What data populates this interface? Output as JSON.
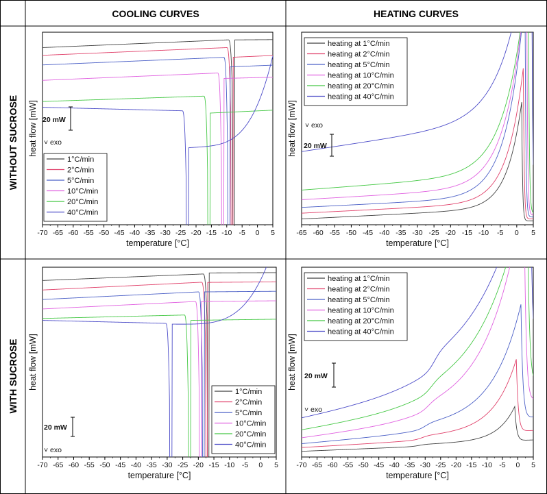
{
  "headers": {
    "col_left": "COOLING CURVES",
    "col_right": "HEATING CURVES",
    "row_top": "WITHOUT SUCROSE",
    "row_bottom": "WITH SUCROSE"
  },
  "colors": {
    "1": "#404040",
    "2": "#e0406a",
    "5": "#4a5fc6",
    "10": "#e060e0",
    "20": "#44c844",
    "40": "#4b4bc8"
  },
  "chart_data": [
    {
      "id": "cool_nosuc",
      "type": "line",
      "title": "Cooling curves without sucrose",
      "xlabel": "temperature [°C]",
      "ylabel": "heat flow [mW]",
      "xlim": [
        -70,
        5
      ],
      "xticks": [
        -70,
        -65,
        -60,
        -55,
        -50,
        -45,
        -40,
        -35,
        -30,
        -25,
        -20,
        -15,
        -10,
        -5,
        0,
        5
      ],
      "annotations": {
        "scale": "20 mW",
        "exo": "˅ exo"
      },
      "legend": {
        "position": "bottom-left",
        "entries": [
          "1°C/min",
          "2°C/min",
          "5°C/min",
          "10°C/min",
          "20°C/min",
          "40°C/min"
        ]
      },
      "series": [
        {
          "name": "1°C/min",
          "key": "1",
          "start": 92,
          "end": 97,
          "Tc": -8.0,
          "after": 96,
          "dip": 60,
          "width": 0.6
        },
        {
          "name": "2°C/min",
          "key": "2",
          "start": 88,
          "end": 93,
          "Tc": -8.5,
          "after": 87,
          "dip": 40,
          "width": 0.6
        },
        {
          "name": "5°C/min",
          "key": "5",
          "start": 83,
          "end": 88,
          "Tc": -9.5,
          "after": 82,
          "dip": 10,
          "width": 0.6
        },
        {
          "name": "10°C/min",
          "key": "10",
          "start": 75,
          "end": 80,
          "Tc": -11.5,
          "after": 76,
          "dip": 3,
          "width": 0.6
        },
        {
          "name": "20°C/min",
          "key": "20",
          "start": 64,
          "end": 68,
          "Tc": -16,
          "after": 58,
          "dip": 3,
          "width": 0.6
        },
        {
          "name": "40°C/min",
          "key": "40",
          "start": 61,
          "end": 58,
          "Tc": -23,
          "after": 40,
          "dip": 3,
          "width": 0.6
        }
      ]
    },
    {
      "id": "heat_nosuc",
      "type": "line",
      "title": "Heating curves without sucrose",
      "xlabel": "temperature [°C]",
      "ylabel": "heat flow [mW]",
      "xlim": [
        -65,
        5
      ],
      "xticks": [
        -65,
        -60,
        -55,
        -50,
        -45,
        -40,
        -35,
        -30,
        -25,
        -20,
        -15,
        -10,
        -5,
        0,
        5
      ],
      "annotations": {
        "scale": "20 mW",
        "exo": "˅ exo"
      },
      "legend": {
        "position": "top-left",
        "entries": [
          "heating at 1°C/min",
          "heating at 2°C/min",
          "heating at 5°C/min",
          "heating at 10°C/min",
          "heating at 20°C/min",
          "heating at 40°C/min"
        ]
      },
      "series": [
        {
          "name": "heating at 1°C/min",
          "key": "1",
          "start": 3,
          "end": 9,
          "Tpk": 1.5,
          "amp": 55,
          "tail": 2,
          "width": 2.0
        },
        {
          "name": "heating at 2°C/min",
          "key": "2",
          "start": 6,
          "end": 12,
          "Tpk": 2.0,
          "amp": 70,
          "tail": 3,
          "width": 2.2
        },
        {
          "name": "heating at 5°C/min",
          "key": "5",
          "start": 9,
          "end": 15,
          "Tpk": 2.5,
          "amp": 105,
          "tail": 4,
          "width": 2.4
        },
        {
          "name": "heating at 10°C/min",
          "key": "10",
          "start": 13,
          "end": 20,
          "Tpk": 3.0,
          "amp": 110,
          "tail": 5,
          "width": 2.6
        },
        {
          "name": "heating at 20°C/min",
          "key": "20",
          "start": 18,
          "end": 27,
          "Tpk": 3.5,
          "amp": 110,
          "tail": 6,
          "width": 2.8
        },
        {
          "name": "heating at 40°C/min",
          "key": "40",
          "start": 38,
          "end": 56,
          "Tpk": 4.5,
          "amp": 110,
          "tail": 10,
          "width": 3.2
        }
      ]
    },
    {
      "id": "cool_suc",
      "type": "line",
      "title": "Cooling curves with sucrose",
      "xlabel": "temperature [°C]",
      "ylabel": "heat flow [mW]",
      "xlim": [
        -70,
        5
      ],
      "xticks": [
        -70,
        -65,
        -60,
        -55,
        -50,
        -45,
        -40,
        -35,
        -30,
        -25,
        -20,
        -15,
        -10,
        -5,
        0,
        5
      ],
      "annotations": {
        "scale": "20 mW",
        "exo": "˅ exo"
      },
      "legend": {
        "position": "bottom-right",
        "entries": [
          "1°C/min",
          "2°C/min",
          "5°C/min",
          "10°C/min",
          "20°C/min",
          "40°C/min"
        ]
      },
      "series": [
        {
          "name": "1°C/min",
          "key": "1",
          "start": 93,
          "end": 98,
          "Tc": -17,
          "after": 97,
          "dip": 60,
          "width": 0.5
        },
        {
          "name": "2°C/min",
          "key": "2",
          "start": 88,
          "end": 94,
          "Tc": -17.5,
          "after": 92,
          "dip": 45,
          "width": 0.5
        },
        {
          "name": "5°C/min",
          "key": "5",
          "start": 83,
          "end": 89,
          "Tc": -18.5,
          "after": 87,
          "dip": 20,
          "width": 0.5
        },
        {
          "name": "10°C/min",
          "key": "10",
          "start": 78,
          "end": 84,
          "Tc": -19.5,
          "after": 82,
          "dip": 5,
          "width": 0.5
        },
        {
          "name": "20°C/min",
          "key": "20",
          "start": 73,
          "end": 76,
          "Tc": -23,
          "after": 72,
          "dip": 3,
          "width": 0.6
        },
        {
          "name": "40°C/min",
          "key": "40",
          "start": 72,
          "end": 69,
          "Tc": -29,
          "after": 70,
          "dip": 3,
          "width": 0.6
        }
      ]
    },
    {
      "id": "heat_suc",
      "type": "line",
      "title": "Heating curves with sucrose",
      "xlabel": "temperature [°C]",
      "ylabel": "heat flow [mW]",
      "xlim": [
        -70,
        5
      ],
      "xticks": [
        -70,
        -65,
        -60,
        -55,
        -50,
        -45,
        -40,
        -35,
        -30,
        -25,
        -20,
        -15,
        -10,
        -5,
        0,
        5
      ],
      "annotations": {
        "scale": "20 mW",
        "exo": "˅ exo"
      },
      "legend": {
        "position": "top-left",
        "entries": [
          "heating at 1°C/min",
          "heating at 2°C/min",
          "heating at 5°C/min",
          "heating at 10°C/min",
          "heating at 20°C/min",
          "heating at 40°C/min"
        ]
      },
      "series": [
        {
          "name": "heating at 1°C/min",
          "key": "1",
          "start": 3,
          "end": 8,
          "Tg": -32,
          "step": 1,
          "Tpk": -1.0,
          "amp": 18,
          "width": 1.2
        },
        {
          "name": "heating at 2°C/min",
          "key": "2",
          "start": 5,
          "end": 12,
          "Tg": -31,
          "step": 2,
          "Tpk": -0.5,
          "amp": 38,
          "width": 1.6
        },
        {
          "name": "heating at 5°C/min",
          "key": "5",
          "start": 7,
          "end": 18,
          "Tg": -30,
          "step": 3,
          "Tpk": 1.0,
          "amp": 60,
          "width": 2.0
        },
        {
          "name": "heating at 10°C/min",
          "key": "10",
          "start": 10,
          "end": 26,
          "Tg": -29,
          "step": 4,
          "Tpk": 2.0,
          "amp": 110,
          "width": 2.4
        },
        {
          "name": "heating at 20°C/min",
          "key": "20",
          "start": 14,
          "end": 34,
          "Tg": -28,
          "step": 5,
          "Tpk": 3.0,
          "amp": 110,
          "width": 2.8
        },
        {
          "name": "heating at 40°C/min",
          "key": "40",
          "start": 20,
          "end": 44,
          "Tg": -27,
          "step": 8,
          "Tpk": 4.0,
          "amp": 110,
          "width": 3.2
        }
      ]
    }
  ]
}
